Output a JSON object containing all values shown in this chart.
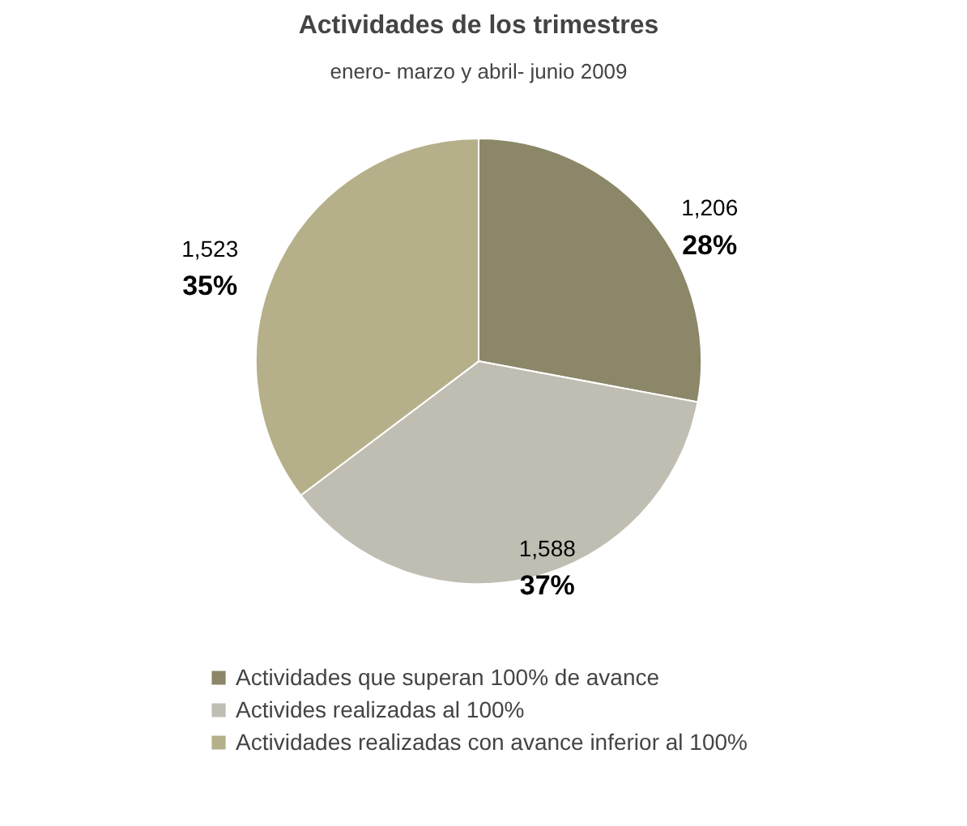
{
  "chart_data": {
    "type": "pie",
    "title": "Actividades de los trimestres",
    "subtitle": "enero- marzo y abril- junio 2009",
    "categories": [
      "Actividades que superan 100% de avance",
      "Activides realizadas al 100%",
      "Actividades realizadas con avance inferior al 100%"
    ],
    "values": [
      1206,
      1588,
      1523
    ],
    "colors": [
      "#8b8768",
      "#c0beb2",
      "#b5b08a"
    ],
    "value_labels": [
      "1,206\n28%",
      "1,588\n37%",
      "1,523\n35%"
    ],
    "legend": "bottom"
  }
}
